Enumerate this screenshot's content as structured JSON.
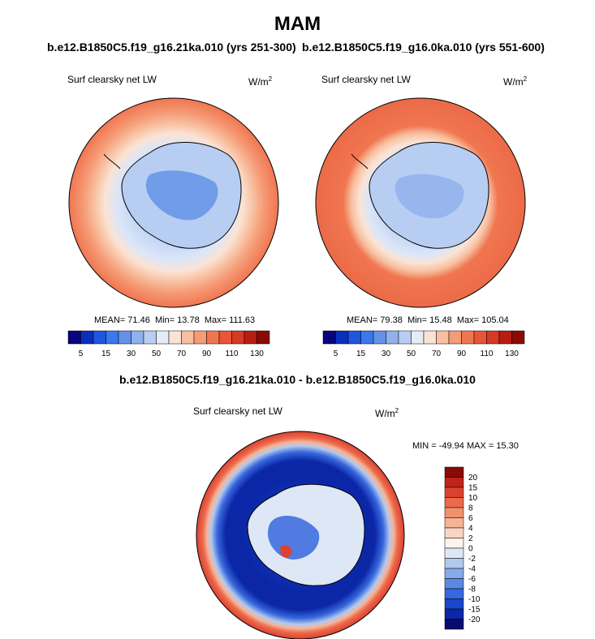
{
  "season": "MAM",
  "panels": [
    {
      "run": "b.e12.B1850C5.f19_g16.21ka.010 (yrs 251-300)",
      "variable": "Surf clearsky net LW",
      "units_base": "W/m",
      "units_exp": "2",
      "stats": {
        "mean_label": "MEAN=",
        "mean": "71.46",
        "min_label": "Min=",
        "min": "13.78",
        "max_label": "Max=",
        "max": "111.63"
      }
    },
    {
      "run": "b.e12.B1850C5.f19_g16.0ka.010 (yrs 551-600)",
      "variable": "Surf clearsky net LW",
      "units_base": "W/m",
      "units_exp": "2",
      "stats": {
        "mean_label": "MEAN=",
        "mean": "79.38",
        "min_label": "Min=",
        "min": "15.48",
        "max_label": "Max=",
        "max": "105.04"
      }
    }
  ],
  "abs_colorbar": {
    "colors": [
      "#08047c",
      "#0a2fbe",
      "#1f56e0",
      "#3a78ec",
      "#6393e8",
      "#8fb1ec",
      "#b8cdf2",
      "#e4ecf8",
      "#fbe3d4",
      "#f8c0a0",
      "#f59b76",
      "#f07650",
      "#e8553a",
      "#d63a22",
      "#b81d12",
      "#8a0a06"
    ],
    "tick_labels": [
      "5",
      "15",
      "30",
      "50",
      "70",
      "90",
      "110",
      "130"
    ]
  },
  "difference": {
    "title": "b.e12.B1850C5.f19_g16.21ka.010 - b.e12.B1850C5.f19_g16.0ka.010",
    "variable": "Surf clearsky net LW",
    "units_base": "W/m",
    "units_exp": "2",
    "stats_text": "MIN = -49.94 MAX =  15.30",
    "colorbar": {
      "colors": [
        "#8a0a06",
        "#c0231a",
        "#dc4230",
        "#ec6a4c",
        "#f2906e",
        "#f6b496",
        "#fad6c2",
        "#fdf2ec",
        "#dde7f6",
        "#b3c9ee",
        "#86a9e8",
        "#5c88e2",
        "#3767dc",
        "#1a46cc",
        "#0b27a8",
        "#070d6e"
      ],
      "tick_labels": [
        "20",
        "15",
        "10",
        "8",
        "6",
        "4",
        "2",
        "0",
        "-2",
        "-4",
        "-6",
        "-8",
        "-10",
        "-15",
        "-20"
      ]
    }
  }
}
